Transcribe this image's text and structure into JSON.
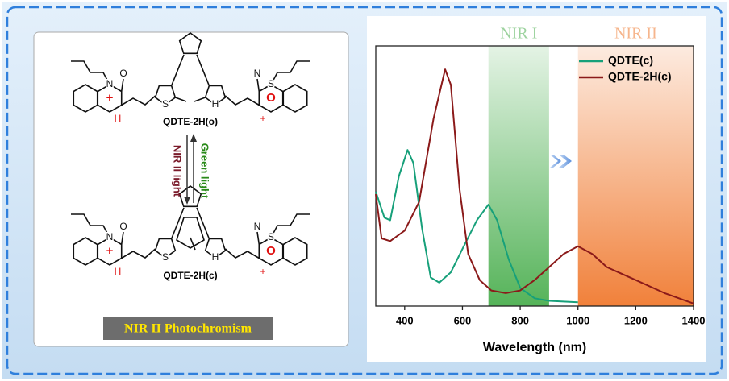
{
  "scheme": {
    "molecules": [
      {
        "name": "QDTE-2H(o)",
        "atoms": [
          "N",
          "O",
          "+",
          "H",
          "S",
          "S",
          "N",
          "O",
          "+",
          "H"
        ]
      },
      {
        "name": "QDTE-2H(c)",
        "atoms": [
          "N",
          "O",
          "+",
          "H",
          "S",
          "S",
          "N",
          "O",
          "+",
          "H"
        ]
      }
    ],
    "forward_light": "Green light",
    "backward_light": "NIR II light",
    "caption": "NIR II Photochromism"
  },
  "chart_data": {
    "type": "line",
    "x_label": "Wavelength (nm)",
    "xlim": [
      300,
      1400
    ],
    "xticks": [
      400,
      600,
      800,
      1000,
      1200,
      1400
    ],
    "ylim": [
      0,
      1
    ],
    "legend": "upper right",
    "bands": [
      {
        "label": "NIR I",
        "range": [
          690,
          900
        ],
        "color": "#4caf50"
      },
      {
        "label": "NIR II",
        "range": [
          1000,
          1400
        ],
        "color": "#f07a30"
      }
    ],
    "series": [
      {
        "name": "QDTE(c)",
        "color": "#17a07a",
        "x": [
          300,
          330,
          350,
          380,
          410,
          430,
          460,
          490,
          520,
          560,
          600,
          650,
          690,
          720,
          760,
          800,
          850,
          900,
          1000
        ],
        "values": [
          0.44,
          0.34,
          0.33,
          0.5,
          0.6,
          0.55,
          0.3,
          0.11,
          0.09,
          0.13,
          0.22,
          0.33,
          0.39,
          0.33,
          0.18,
          0.07,
          0.03,
          0.02,
          0.015
        ]
      },
      {
        "name": "QDTE-2H(c)",
        "color": "#8b1a1a",
        "x": [
          300,
          320,
          350,
          400,
          450,
          500,
          540,
          560,
          590,
          620,
          660,
          700,
          750,
          800,
          850,
          900,
          950,
          1000,
          1050,
          1100,
          1200,
          1300,
          1400
        ],
        "values": [
          0.43,
          0.26,
          0.25,
          0.29,
          0.4,
          0.72,
          0.91,
          0.85,
          0.45,
          0.2,
          0.1,
          0.06,
          0.05,
          0.06,
          0.1,
          0.15,
          0.2,
          0.23,
          0.2,
          0.15,
          0.1,
          0.05,
          0.01
        ]
      }
    ]
  }
}
